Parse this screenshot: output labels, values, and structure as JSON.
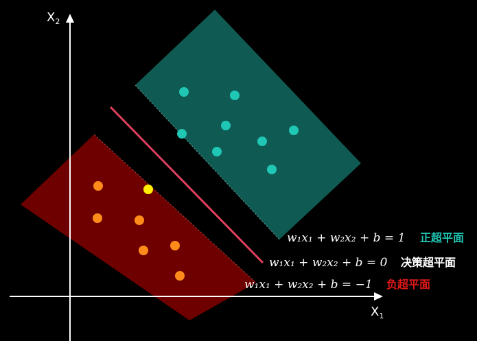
{
  "axes": {
    "x_label": "X",
    "x_sub": "1",
    "y_label": "X",
    "y_sub": "2"
  },
  "equations": {
    "positive": "w₁x₁ + w₂x₂ + b = 1",
    "decision": "w₁x₁ + w₂x₂ + b = 0",
    "negative": "w₁x₁ + w₂x₂ + b = −1"
  },
  "tags": {
    "positive": "正超平面",
    "decision": "决策超平面",
    "negative": "负超平面"
  },
  "colors": {
    "background": "#000000",
    "positive_region": "#0f5a52",
    "negative_region": "#6e0000",
    "decision_line": "#e0405e",
    "positive_points": "#1fc7b4",
    "negative_points": "#ff8c1a",
    "support_point": "#ffee00",
    "positive_tag": "#1fc7b4",
    "negative_tag": "#e01818",
    "decision_tag": "#ffffff"
  },
  "points": {
    "positive_count": 8,
    "negative_count": 6,
    "support_vectors": 1
  }
}
